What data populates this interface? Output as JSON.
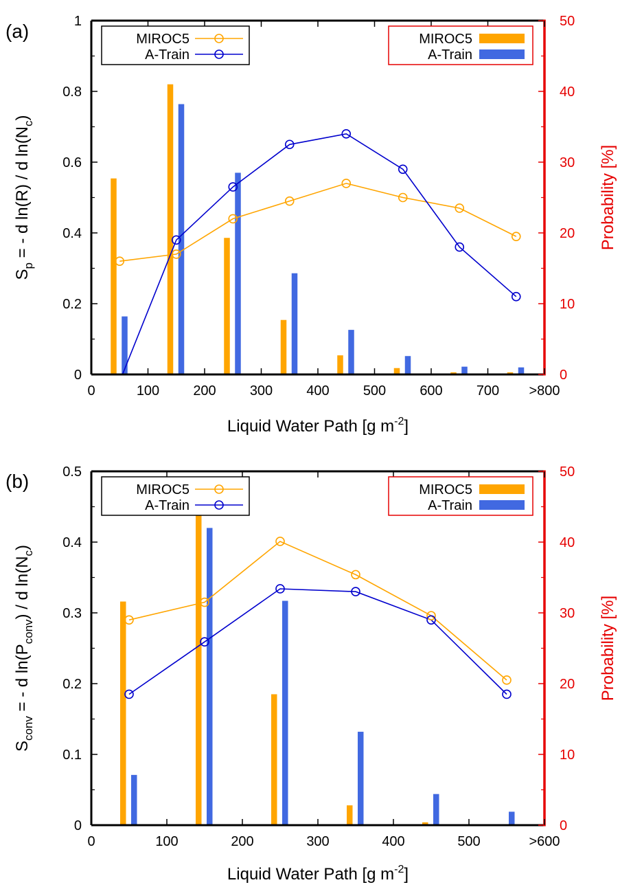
{
  "colors": {
    "miroc_bar": "#ffa500",
    "atrain_bar": "#4169e1",
    "miroc_line": "#ffa500",
    "atrain_line": "#0000cd",
    "right_axis": "#e60000",
    "frame": "#000000"
  },
  "chart_data": [
    {
      "type": "bar",
      "panel_label": "(a)",
      "xlabel": {
        "main": "Liquid Water Path [g m",
        "sup": "-2",
        "tail": "]"
      },
      "ylabel": {
        "parts": [
          [
            "S",
            ""
          ],
          [
            "p",
            "sub"
          ],
          [
            " = - d ln(R) / d ln(N",
            ""
          ],
          [
            "c",
            "sub"
          ],
          [
            ")",
            ""
          ]
        ]
      },
      "ylabel_right": "Probability [%]",
      "xlim": [
        0,
        800
      ],
      "x_ticks": [
        0,
        100,
        200,
        300,
        400,
        500,
        600,
        700,
        800
      ],
      "x_tick_labels": [
        "0",
        "100",
        "200",
        "300",
        "400",
        "500",
        "600",
        "700",
        ">800"
      ],
      "ylim": [
        0,
        1
      ],
      "y_ticks": [
        0,
        0.2,
        0.4,
        0.6,
        0.8,
        1
      ],
      "y_tick_labels": [
        "0",
        "0.2",
        "0.4",
        "0.6",
        "0.8",
        "1"
      ],
      "ylim_right": [
        0,
        50
      ],
      "y2_ticks": [
        0,
        10,
        20,
        30,
        40,
        50
      ],
      "y2_tick_labels": [
        "0",
        "10",
        "20",
        "30",
        "40",
        "50"
      ],
      "x": [
        50,
        150,
        250,
        350,
        450,
        550,
        650,
        750
      ],
      "line_series": [
        {
          "name": "MIROC5",
          "values": [
            0.32,
            0.34,
            0.44,
            0.49,
            0.54,
            0.5,
            0.47,
            0.39
          ]
        },
        {
          "name": "A-Train",
          "values": [
            -0.02,
            0.38,
            0.53,
            0.65,
            0.68,
            0.58,
            0.36,
            0.22
          ]
        }
      ],
      "bar_series": [
        {
          "name": "MIROC5",
          "values": [
            27.7,
            41.0,
            19.3,
            7.7,
            2.7,
            0.9,
            0.3,
            0.3
          ]
        },
        {
          "name": "A-Train",
          "values": [
            8.2,
            38.2,
            28.5,
            14.3,
            6.3,
            2.6,
            1.1,
            1.0
          ]
        }
      ],
      "legend_lines": [
        "MIROC5",
        "A-Train"
      ],
      "legend_bars": [
        "MIROC5",
        "A-Train"
      ],
      "legend_lines_position": "top-left",
      "legend_bars_position": "top-right",
      "grid": false
    },
    {
      "type": "bar",
      "panel_label": "(b)",
      "xlabel": {
        "main": "Liquid Water Path [g m",
        "sup": "-2",
        "tail": "]"
      },
      "ylabel": {
        "parts": [
          [
            "S",
            ""
          ],
          [
            "conv",
            "sub"
          ],
          [
            " = - d ln(P",
            ""
          ],
          [
            "conv",
            "sub"
          ],
          [
            ") / d ln(N",
            ""
          ],
          [
            "c",
            "sub"
          ],
          [
            ")",
            ""
          ]
        ]
      },
      "ylabel_right": "Probability [%]",
      "xlim": [
        0,
        600
      ],
      "x_ticks": [
        0,
        100,
        200,
        300,
        400,
        500,
        600
      ],
      "x_tick_labels": [
        "0",
        "100",
        "200",
        "300",
        "400",
        "500",
        ">600"
      ],
      "ylim": [
        0,
        0.5
      ],
      "y_ticks": [
        0,
        0.1,
        0.2,
        0.3,
        0.4,
        0.5
      ],
      "y_tick_labels": [
        "0",
        "0.1",
        "0.2",
        "0.3",
        "0.4",
        "0.5"
      ],
      "ylim_right": [
        0,
        50
      ],
      "y2_ticks": [
        0,
        10,
        20,
        30,
        40,
        50
      ],
      "y2_tick_labels": [
        "0",
        "10",
        "20",
        "30",
        "40",
        "50"
      ],
      "x": [
        50,
        150,
        250,
        350,
        450,
        550
      ],
      "line_series": [
        {
          "name": "MIROC5",
          "values": [
            0.29,
            0.315,
            0.401,
            0.354,
            0.296,
            0.205
          ]
        },
        {
          "name": "A-Train",
          "values": [
            0.185,
            0.259,
            0.334,
            0.33,
            0.29,
            0.185
          ]
        }
      ],
      "bar_series": [
        {
          "name": "MIROC5",
          "values": [
            31.6,
            46.9,
            18.5,
            2.8,
            0.4,
            0.0
          ]
        },
        {
          "name": "A-Train",
          "values": [
            7.1,
            42.0,
            31.7,
            13.2,
            4.4,
            1.9
          ]
        }
      ],
      "legend_lines": [
        "MIROC5",
        "A-Train"
      ],
      "legend_bars": [
        "MIROC5",
        "A-Train"
      ],
      "legend_lines_position": "top-left",
      "legend_bars_position": "top-right",
      "grid": false
    }
  ]
}
